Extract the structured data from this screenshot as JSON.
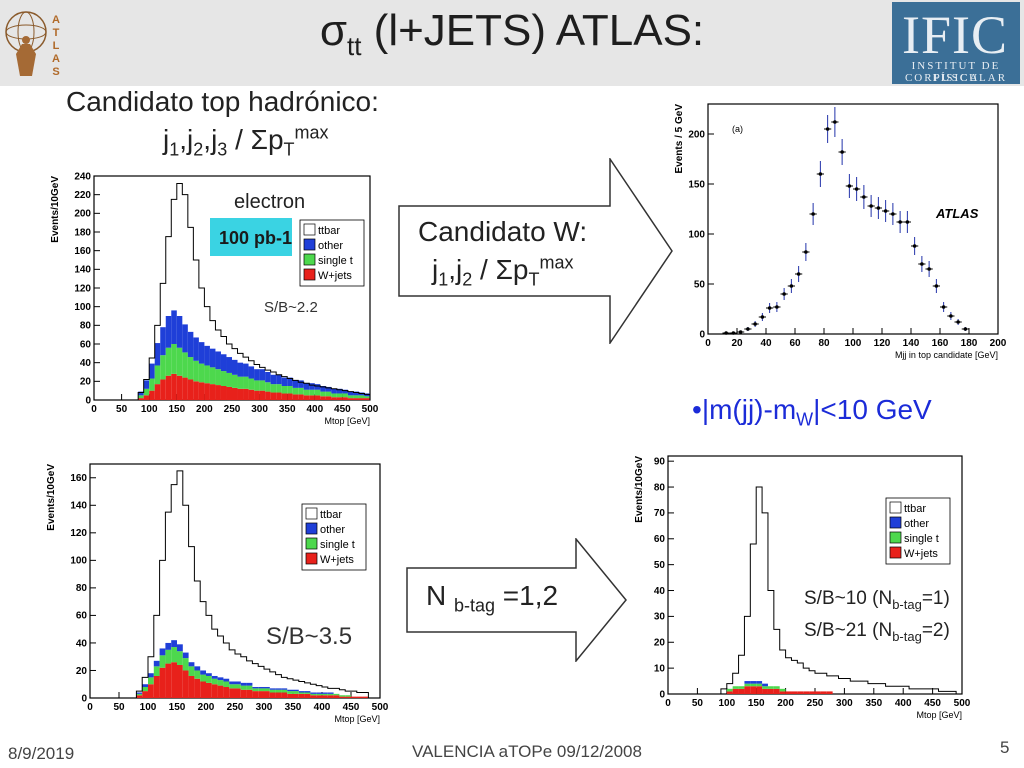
{
  "header": {
    "title_main": "σ",
    "title_sub": "tt",
    "title_rest": " (l+JETS) ATLAS:",
    "ific_logo_text": "IFIC",
    "ific_line1": "INSTITUT DE FÍSICA",
    "ific_line2": "CORPUSCULAR",
    "atlas_logo_letters": [
      "A",
      "T",
      "L",
      "A",
      "S"
    ]
  },
  "text": {
    "cand_top": "Candidato top hadrónico:",
    "cand_top_formula": {
      "j": "j",
      "s1": "1",
      "s2": "2",
      "s3": "3",
      "sep": ",",
      "slash": " / ΣpT",
      "sub": "T",
      "sup": "max"
    },
    "cand_w_title": "Candidato W:",
    "cand_w_formula": {
      "j": "j",
      "s1": "1",
      "s2": "2",
      "sep": ",",
      "slash": " / Σp",
      "sub": "T",
      "sup": "max"
    },
    "mjj_cut": {
      "bullet": "•",
      "a": "|m(jj)-m",
      "sub": "W",
      "b": "|<10 GeV"
    },
    "nbtag": {
      "n": "N ",
      "sub": "b-tag",
      "rest": " =1,2"
    },
    "sb_lines": [
      {
        "a": "S/B~10 (N",
        "sub": "b-tag",
        "b": "=1)"
      },
      {
        "a": "S/B~21 (N",
        "sub": "b-tag",
        "b": "=2)"
      }
    ]
  },
  "footer": {
    "date": "8/9/2019",
    "center": "VALENCIA aTOPe  09/12/2008",
    "page": "5"
  },
  "chart_data": [
    {
      "type": "area",
      "ylabel": "Events/10GeV",
      "xlabel": "Mtop [GeV]",
      "channel": "electron",
      "lumi": "100 pb-1",
      "sb": "S/B~2.2",
      "xlim": [
        0,
        500
      ],
      "ylim": [
        0,
        240
      ],
      "xticks": [
        0,
        50,
        100,
        150,
        200,
        250,
        300,
        350,
        400,
        450,
        500
      ],
      "yticks": [
        0,
        20,
        40,
        60,
        80,
        100,
        120,
        140,
        160,
        180,
        200,
        220,
        240
      ],
      "legend": [
        "ttbar",
        "other",
        "single t",
        "W+jets"
      ],
      "legend_colors": [
        "#ffffff",
        "#1f3fd8",
        "#4dd84d",
        "#e8211b"
      ],
      "bin_width": 10,
      "x": [
        80,
        90,
        100,
        110,
        120,
        130,
        140,
        150,
        160,
        170,
        180,
        190,
        200,
        210,
        220,
        230,
        240,
        250,
        260,
        270,
        280,
        290,
        300,
        310,
        320,
        330,
        340,
        350,
        360,
        370,
        380,
        390,
        400,
        410,
        420,
        430,
        440,
        450,
        460,
        470,
        480,
        490
      ],
      "ttbar": [
        8,
        22,
        45,
        80,
        125,
        175,
        215,
        232,
        220,
        185,
        150,
        120,
        100,
        85,
        75,
        68,
        60,
        55,
        50,
        46,
        42,
        38,
        35,
        32,
        30,
        27,
        25,
        23,
        21,
        19,
        18,
        16,
        15,
        14,
        13,
        12,
        11,
        10,
        9,
        8,
        7,
        6
      ],
      "other": [
        4,
        9,
        16,
        24,
        30,
        34,
        36,
        34,
        30,
        27,
        25,
        23,
        21,
        20,
        19,
        18,
        17,
        16,
        15,
        14,
        13,
        12,
        12,
        11,
        10,
        10,
        9,
        9,
        8,
        8,
        7,
        7,
        6,
        6,
        5,
        5,
        5,
        4,
        4,
        4,
        3,
        3
      ],
      "single_t": [
        3,
        7,
        13,
        20,
        26,
        30,
        32,
        30,
        27,
        24,
        22,
        20,
        19,
        18,
        17,
        16,
        15,
        14,
        13,
        13,
        12,
        11,
        11,
        10,
        9,
        9,
        8,
        8,
        7,
        7,
        6,
        6,
        6,
        5,
        5,
        4,
        4,
        4,
        3,
        3,
        3,
        2
      ],
      "wjets": [
        2,
        5,
        10,
        17,
        22,
        26,
        28,
        26,
        24,
        22,
        20,
        19,
        18,
        17,
        16,
        15,
        14,
        13,
        12,
        12,
        11,
        10,
        10,
        9,
        8,
        8,
        7,
        7,
        6,
        6,
        5,
        5,
        5,
        4,
        4,
        3,
        3,
        3,
        2,
        2,
        2,
        2
      ]
    },
    {
      "type": "scatter",
      "label": "(a)",
      "ylabel": "Events / 5 GeV",
      "xlabel": "Mjj in top candidate [GeV]",
      "watermark": "ATLAS",
      "xlim": [
        0,
        200
      ],
      "ylim": [
        0,
        230
      ],
      "xticks": [
        0,
        20,
        40,
        60,
        80,
        100,
        120,
        140,
        160,
        180,
        200
      ],
      "yticks": [
        0,
        50,
        100,
        150,
        200
      ],
      "x": [
        12.5,
        17.5,
        22.5,
        27.5,
        32.5,
        37.5,
        42.5,
        47.5,
        52.5,
        57.5,
        62.5,
        67.5,
        72.5,
        77.5,
        82.5,
        87.5,
        92.5,
        97.5,
        102.5,
        107.5,
        112.5,
        117.5,
        122.5,
        127.5,
        132.5,
        137.5,
        142.5,
        147.5,
        152.5,
        157.5,
        162.5,
        167.5,
        172.5,
        177.5
      ],
      "y": [
        1,
        1,
        2,
        5,
        10,
        17,
        26,
        27,
        40,
        48,
        60,
        82,
        120,
        160,
        205,
        212,
        182,
        148,
        145,
        137,
        128,
        126,
        123,
        120,
        112,
        112,
        88,
        70,
        65,
        48,
        27,
        18,
        12,
        5
      ],
      "err": [
        1,
        1,
        1,
        2,
        3,
        4,
        5,
        5,
        6,
        7,
        8,
        9,
        11,
        13,
        14,
        15,
        13,
        12,
        12,
        12,
        11,
        11,
        11,
        11,
        11,
        11,
        9,
        8,
        8,
        7,
        5,
        4,
        3,
        2
      ]
    },
    {
      "type": "area",
      "ylabel": "Events/10GeV",
      "xlabel": "Mtop [GeV]",
      "sb": "S/B~3.5",
      "xlim": [
        0,
        500
      ],
      "ylim": [
        0,
        170
      ],
      "xticks": [
        0,
        50,
        100,
        150,
        200,
        250,
        300,
        350,
        400,
        450,
        500
      ],
      "yticks": [
        0,
        20,
        40,
        60,
        80,
        100,
        120,
        140,
        160
      ],
      "legend": [
        "ttbar",
        "other",
        "single t",
        "W+jets"
      ],
      "legend_colors": [
        "#ffffff",
        "#1f3fd8",
        "#4dd84d",
        "#e8211b"
      ],
      "bin_width": 10,
      "x": [
        80,
        90,
        100,
        110,
        120,
        130,
        140,
        150,
        160,
        170,
        180,
        190,
        200,
        210,
        220,
        230,
        240,
        250,
        260,
        270,
        280,
        290,
        300,
        310,
        320,
        330,
        340,
        350,
        360,
        370,
        380,
        390,
        400,
        410,
        420,
        430,
        440,
        450,
        460,
        470
      ],
      "ttbar": [
        5,
        15,
        30,
        60,
        100,
        135,
        155,
        165,
        140,
        110,
        85,
        70,
        60,
        50,
        45,
        40,
        35,
        32,
        30,
        27,
        25,
        23,
        21,
        19,
        17,
        15,
        14,
        13,
        12,
        11,
        10,
        9,
        8,
        7,
        7,
        6,
        5,
        5,
        4,
        4
      ],
      "other": [
        1,
        2,
        3,
        4,
        5,
        5,
        5,
        5,
        4,
        3,
        3,
        3,
        2,
        2,
        2,
        2,
        2,
        2,
        2,
        2,
        1,
        1,
        1,
        1,
        1,
        1,
        1,
        1,
        1,
        1,
        1,
        1,
        1,
        1,
        0,
        0,
        0,
        0,
        0,
        0
      ],
      "single_t": [
        1,
        3,
        5,
        7,
        9,
        10,
        11,
        10,
        9,
        7,
        6,
        5,
        5,
        4,
        4,
        4,
        3,
        3,
        3,
        3,
        2,
        2,
        2,
        2,
        2,
        2,
        2,
        2,
        1,
        1,
        1,
        1,
        1,
        1,
        1,
        1,
        1,
        0,
        0,
        0
      ],
      "wjets": [
        2,
        5,
        10,
        16,
        22,
        25,
        26,
        24,
        20,
        16,
        14,
        12,
        11,
        10,
        9,
        8,
        7,
        7,
        6,
        6,
        5,
        5,
        5,
        4,
        4,
        4,
        3,
        3,
        3,
        3,
        2,
        2,
        2,
        2,
        2,
        1,
        1,
        1,
        1,
        1
      ]
    },
    {
      "type": "area",
      "ylabel": "Events/10GeV",
      "xlabel": "Mtop [GeV]",
      "xlim": [
        0,
        500
      ],
      "ylim": [
        0,
        92
      ],
      "xticks": [
        0,
        50,
        100,
        150,
        200,
        250,
        300,
        350,
        400,
        450,
        500
      ],
      "yticks": [
        0,
        10,
        20,
        30,
        40,
        50,
        60,
        70,
        80,
        90
      ],
      "legend": [
        "ttbar",
        "other",
        "single t",
        "W+jets"
      ],
      "legend_colors": [
        "#ffffff",
        "#1f3fd8",
        "#4dd84d",
        "#e8211b"
      ],
      "bin_width": 10,
      "x": [
        90,
        100,
        110,
        120,
        130,
        140,
        150,
        160,
        170,
        180,
        190,
        200,
        210,
        220,
        230,
        240,
        250,
        260,
        270,
        280,
        290,
        300,
        310,
        320,
        330,
        340,
        350,
        360,
        370,
        380,
        390,
        400,
        410,
        420,
        430,
        440,
        450,
        460,
        470,
        480
      ],
      "ttbar": [
        2,
        4,
        8,
        15,
        30,
        58,
        80,
        70,
        40,
        25,
        17,
        14,
        13,
        12,
        10,
        9,
        8,
        8,
        7,
        7,
        6,
        6,
        5,
        5,
        5,
        4,
        4,
        4,
        3,
        3,
        3,
        3,
        2,
        2,
        2,
        2,
        2,
        1,
        1,
        1
      ],
      "other": [
        0,
        0,
        0,
        0,
        1,
        1,
        1,
        1,
        0,
        0,
        0,
        0,
        0,
        0,
        0,
        0,
        0,
        0,
        0,
        0,
        0,
        0,
        0,
        0,
        0,
        0,
        0,
        0,
        0,
        0,
        0,
        0,
        0,
        0,
        0,
        0,
        0,
        0,
        0,
        0
      ],
      "single_t": [
        0,
        1,
        1,
        1,
        1,
        1,
        1,
        1,
        1,
        1,
        1,
        0,
        0,
        0,
        0,
        0,
        0,
        0,
        0,
        0,
        0,
        0,
        0,
        0,
        0,
        0,
        0,
        0,
        0,
        0,
        0,
        0,
        0,
        0,
        0,
        0,
        0,
        0,
        0,
        0
      ],
      "wjets": [
        0,
        1,
        2,
        2,
        3,
        3,
        3,
        2,
        2,
        2,
        1,
        1,
        1,
        1,
        1,
        1,
        1,
        1,
        1,
        0,
        0,
        0,
        0,
        0,
        0,
        0,
        0,
        0,
        0,
        0,
        0,
        0,
        0,
        0,
        0,
        0,
        0,
        0,
        0,
        0
      ]
    }
  ]
}
